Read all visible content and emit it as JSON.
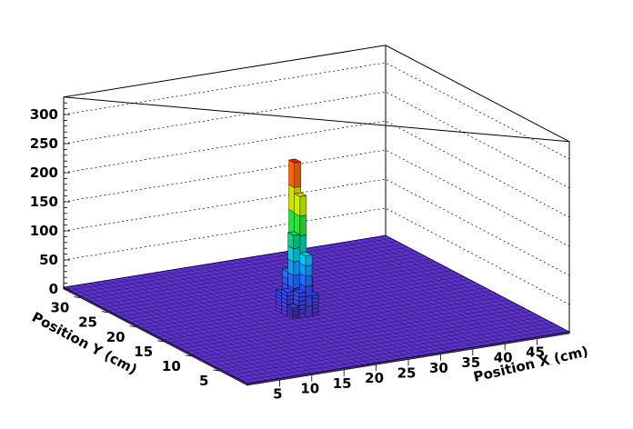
{
  "chart_data": {
    "type": "lego3d",
    "xlabel": "Position X (cm)",
    "ylabel": "Position Y (cm)",
    "zlabel": "",
    "x_ticks": [
      "5",
      "10",
      "15",
      "20",
      "25",
      "30",
      "35",
      "40",
      "45"
    ],
    "y_ticks": [
      "5",
      "10",
      "15",
      "20",
      "25",
      "30"
    ],
    "z_ticks": [
      "0",
      "50",
      "100",
      "150",
      "200",
      "250",
      "300"
    ],
    "xlim": [
      0,
      50
    ],
    "ylim": [
      0,
      33
    ],
    "zlim": [
      0,
      330
    ],
    "grid": true,
    "baseline_color": "#5c32c8",
    "peak": {
      "x_range": [
        20,
        23
      ],
      "y_range": [
        15,
        18
      ],
      "columns": [
        {
          "x": 20,
          "y": 16,
          "value": 44
        },
        {
          "x": 20,
          "y": 17,
          "value": 38
        },
        {
          "x": 21,
          "y": 17,
          "value": 72
        },
        {
          "x": 21,
          "y": 16,
          "value": 140
        },
        {
          "x": 22,
          "y": 17,
          "value": 258
        },
        {
          "x": 22,
          "y": 16,
          "value": 205
        },
        {
          "x": 22,
          "y": 15,
          "value": 108
        },
        {
          "x": 23,
          "y": 16,
          "value": 60
        },
        {
          "x": 21,
          "y": 15,
          "value": 46
        },
        {
          "x": 23,
          "y": 15,
          "value": 38
        },
        {
          "x": 20,
          "y": 15,
          "value": 22
        },
        {
          "x": 23,
          "y": 17,
          "value": 30
        },
        {
          "x": 22,
          "y": 18,
          "value": 26
        },
        {
          "x": 21,
          "y": 18,
          "value": 18
        }
      ]
    }
  }
}
